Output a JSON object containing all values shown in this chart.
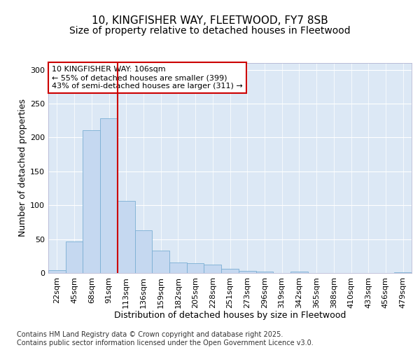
{
  "title1": "10, KINGFISHER WAY, FLEETWOOD, FY7 8SB",
  "title2": "Size of property relative to detached houses in Fleetwood",
  "xlabel": "Distribution of detached houses by size in Fleetwood",
  "ylabel": "Number of detached properties",
  "bar_labels": [
    "22sqm",
    "45sqm",
    "68sqm",
    "91sqm",
    "113sqm",
    "136sqm",
    "159sqm",
    "182sqm",
    "205sqm",
    "228sqm",
    "251sqm",
    "273sqm",
    "296sqm",
    "319sqm",
    "342sqm",
    "365sqm",
    "388sqm",
    "410sqm",
    "433sqm",
    "456sqm",
    "479sqm"
  ],
  "bar_values": [
    4,
    47,
    211,
    228,
    106,
    63,
    33,
    16,
    14,
    12,
    6,
    3,
    2,
    0,
    2,
    0,
    0,
    0,
    0,
    0,
    1
  ],
  "bar_color": "#c5d8f0",
  "bar_edge_color": "#7aafd4",
  "vline_x": 3.5,
  "vline_color": "#cc0000",
  "annotation_text": "10 KINGFISHER WAY: 106sqm\n← 55% of detached houses are smaller (399)\n43% of semi-detached houses are larger (311) →",
  "annotation_box_color": "#ffffff",
  "annotation_box_edge": "#cc0000",
  "ylim": [
    0,
    310
  ],
  "yticks": [
    0,
    50,
    100,
    150,
    200,
    250,
    300
  ],
  "footer": "Contains HM Land Registry data © Crown copyright and database right 2025.\nContains public sector information licensed under the Open Government Licence v3.0.",
  "fig_bg_color": "#ffffff",
  "plot_bg_color": "#dce8f5",
  "grid_color": "#ffffff",
  "title1_fontsize": 11,
  "title2_fontsize": 10,
  "axis_label_fontsize": 9,
  "tick_fontsize": 8,
  "annotation_fontsize": 8,
  "footer_fontsize": 7
}
